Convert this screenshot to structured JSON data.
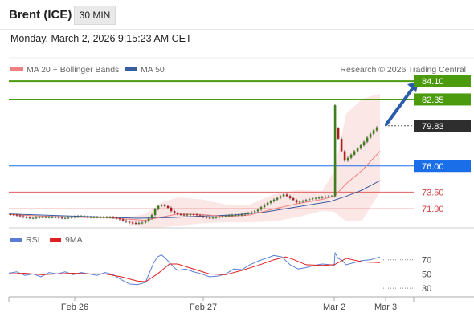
{
  "header": {
    "title": "Brent (ICE)",
    "timeframe": "30 MIN"
  },
  "timestamp": "Monday, March 2, 2026 9:15:23 AM CET",
  "legend": {
    "ma20_label": "MA 20 + Bollinger Bands",
    "ma20_color": "#f08080",
    "ma50_label": "MA 50",
    "ma50_color": "#3a5da0",
    "credit": "Research © 2026 Trading Central"
  },
  "rsi_legend": {
    "rsi_label": "RSI",
    "rsi_color": "#5b7fd6",
    "ma_label": "9MA",
    "ma_color": "#e02020"
  },
  "chart_data": [
    {
      "type": "candlestick",
      "ylim": [
        70,
        84.8
      ],
      "x_ticks": [
        "Feb 26",
        "Feb 27",
        "Mar 2",
        "Mar 3"
      ],
      "current_price": "79.83",
      "levels": [
        {
          "label": "84.10",
          "value": 84.1,
          "kind": "resistance",
          "color": "#4c9a0e"
        },
        {
          "label": "82.35",
          "value": 82.35,
          "kind": "resistance",
          "color": "#4c9a0e"
        },
        {
          "label": "76.00",
          "value": 76.0,
          "kind": "pivot",
          "color": "#1a6ee8"
        },
        {
          "label": "73.50",
          "value": 73.5,
          "kind": "support",
          "color": "#e06060"
        },
        {
          "label": "71.90",
          "value": 71.9,
          "kind": "support",
          "color": "#e06060"
        }
      ],
      "price_path": [
        [
          0,
          71.4
        ],
        [
          10,
          71.3
        ],
        [
          20,
          71.1
        ],
        [
          30,
          71.0
        ],
        [
          40,
          71.1
        ],
        [
          50,
          71.1
        ],
        [
          60,
          71.1
        ],
        [
          70,
          71.0
        ],
        [
          80,
          71.1
        ],
        [
          90,
          71.2
        ],
        [
          100,
          71.1
        ],
        [
          110,
          71.1
        ],
        [
          120,
          71.1
        ],
        [
          130,
          71.1
        ],
        [
          140,
          70.9
        ],
        [
          150,
          70.6
        ],
        [
          160,
          70.5
        ],
        [
          170,
          70.6
        ],
        [
          175,
          70.9
        ],
        [
          180,
          71.3
        ],
        [
          185,
          72.0
        ],
        [
          190,
          72.3
        ],
        [
          195,
          72.2
        ],
        [
          200,
          72.0
        ],
        [
          205,
          71.6
        ],
        [
          210,
          71.4
        ],
        [
          220,
          71.3
        ],
        [
          230,
          71.4
        ],
        [
          240,
          71.2
        ],
        [
          250,
          71.0
        ],
        [
          260,
          71.1
        ],
        [
          270,
          71.2
        ],
        [
          280,
          71.3
        ],
        [
          290,
          71.3
        ],
        [
          300,
          71.5
        ],
        [
          310,
          71.7
        ],
        [
          320,
          72.3
        ],
        [
          330,
          72.7
        ],
        [
          340,
          73.1
        ],
        [
          345,
          73.3
        ],
        [
          350,
          73.0
        ],
        [
          355,
          72.8
        ],
        [
          360,
          72.5
        ],
        [
          365,
          72.6
        ],
        [
          370,
          72.7
        ],
        [
          380,
          72.9
        ],
        [
          390,
          73.0
        ],
        [
          400,
          73.1
        ],
        [
          405,
          73.1
        ],
        [
          406,
          82.2
        ],
        [
          408,
          79.6
        ],
        [
          412,
          78.6
        ],
        [
          416,
          77.4
        ],
        [
          420,
          76.5
        ],
        [
          426,
          76.9
        ],
        [
          432,
          77.4
        ],
        [
          438,
          77.8
        ],
        [
          444,
          78.3
        ],
        [
          450,
          78.9
        ],
        [
          456,
          79.4
        ],
        [
          462,
          79.83
        ]
      ],
      "ma20_path": [
        [
          0,
          71.35
        ],
        [
          40,
          71.2
        ],
        [
          80,
          71.1
        ],
        [
          120,
          71.05
        ],
        [
          150,
          70.9
        ],
        [
          170,
          70.8
        ],
        [
          190,
          71.1
        ],
        [
          210,
          71.4
        ],
        [
          240,
          71.35
        ],
        [
          270,
          71.15
        ],
        [
          300,
          71.3
        ],
        [
          330,
          71.9
        ],
        [
          360,
          72.4
        ],
        [
          390,
          72.8
        ],
        [
          405,
          73.1
        ],
        [
          420,
          74.3
        ],
        [
          440,
          75.6
        ],
        [
          462,
          77.4
        ]
      ],
      "ma50_path": [
        [
          0,
          71.4
        ],
        [
          40,
          71.3
        ],
        [
          80,
          71.2
        ],
        [
          120,
          71.1
        ],
        [
          160,
          71.0
        ],
        [
          200,
          71.05
        ],
        [
          240,
          71.2
        ],
        [
          280,
          71.3
        ],
        [
          320,
          71.6
        ],
        [
          360,
          72.1
        ],
        [
          400,
          72.6
        ],
        [
          420,
          73.1
        ],
        [
          440,
          73.7
        ],
        [
          462,
          74.6
        ]
      ],
      "band_upper": [
        [
          150,
          71.1
        ],
        [
          170,
          71.4
        ],
        [
          190,
          72.5
        ],
        [
          210,
          73.0
        ],
        [
          240,
          72.8
        ],
        [
          270,
          72.3
        ],
        [
          300,
          72.3
        ],
        [
          330,
          73.3
        ],
        [
          360,
          73.7
        ],
        [
          390,
          73.6
        ],
        [
          405,
          75.5
        ],
        [
          420,
          81.0
        ],
        [
          440,
          82.4
        ],
        [
          462,
          82.9
        ]
      ],
      "band_lower": [
        [
          150,
          70.3
        ],
        [
          170,
          70.1
        ],
        [
          190,
          70.1
        ],
        [
          210,
          70.3
        ],
        [
          240,
          70.5
        ],
        [
          270,
          70.6
        ],
        [
          300,
          70.6
        ],
        [
          330,
          70.7
        ],
        [
          360,
          71.1
        ],
        [
          390,
          71.7
        ],
        [
          405,
          71.6
        ],
        [
          420,
          70.7
        ],
        [
          440,
          70.8
        ],
        [
          462,
          73.5
        ]
      ],
      "projection": {
        "from": [
          464,
          79.83
        ],
        "to": [
          510,
          84.1
        ]
      }
    },
    {
      "type": "line",
      "ylim": [
        20,
        90
      ],
      "y_ticks": [
        70,
        50,
        30
      ],
      "series": [
        {
          "name": "RSI",
          "values": [
            [
              0,
              51
            ],
            [
              10,
              53
            ],
            [
              20,
              48
            ],
            [
              30,
              50
            ],
            [
              40,
              46
            ],
            [
              50,
              52
            ],
            [
              60,
              50
            ],
            [
              70,
              53
            ],
            [
              80,
              49
            ],
            [
              90,
              52
            ],
            [
              100,
              50
            ],
            [
              110,
              48
            ],
            [
              120,
              52
            ],
            [
              130,
              49
            ],
            [
              140,
              42
            ],
            [
              150,
              36
            ],
            [
              160,
              35
            ],
            [
              170,
              38
            ],
            [
              180,
              65
            ],
            [
              185,
              74
            ],
            [
              190,
              77
            ],
            [
              195,
              72
            ],
            [
              200,
              66
            ],
            [
              205,
              60
            ],
            [
              210,
              55
            ],
            [
              220,
              57
            ],
            [
              230,
              53
            ],
            [
              240,
              50
            ],
            [
              250,
              46
            ],
            [
              260,
              47
            ],
            [
              270,
              50
            ],
            [
              280,
              57
            ],
            [
              290,
              56
            ],
            [
              300,
              63
            ],
            [
              310,
              68
            ],
            [
              320,
              72
            ],
            [
              330,
              76
            ],
            [
              340,
              74
            ],
            [
              350,
              63
            ],
            [
              360,
              57
            ],
            [
              370,
              59
            ],
            [
              380,
              62
            ],
            [
              390,
              64
            ],
            [
              400,
              63
            ],
            [
              405,
              62
            ],
            [
              406,
              80
            ],
            [
              410,
              72
            ],
            [
              415,
              69
            ],
            [
              420,
              63
            ],
            [
              430,
              66
            ],
            [
              440,
              69
            ],
            [
              450,
              70
            ],
            [
              462,
              74
            ]
          ]
        },
        {
          "name": "9MA",
          "values": [
            [
              0,
              50
            ],
            [
              20,
              51
            ],
            [
              40,
              49
            ],
            [
              60,
              50
            ],
            [
              80,
              51
            ],
            [
              100,
              50
            ],
            [
              120,
              50
            ],
            [
              140,
              46
            ],
            [
              160,
              40
            ],
            [
              170,
              39
            ],
            [
              185,
              50
            ],
            [
              200,
              64
            ],
            [
              210,
              64
            ],
            [
              230,
              57
            ],
            [
              250,
              50
            ],
            [
              270,
              49
            ],
            [
              290,
              55
            ],
            [
              310,
              62
            ],
            [
              330,
              70
            ],
            [
              345,
              74
            ],
            [
              355,
              70
            ],
            [
              370,
              63
            ],
            [
              390,
              62
            ],
            [
              405,
              63
            ],
            [
              420,
              72
            ],
            [
              440,
              67
            ],
            [
              462,
              66
            ]
          ]
        }
      ]
    }
  ]
}
